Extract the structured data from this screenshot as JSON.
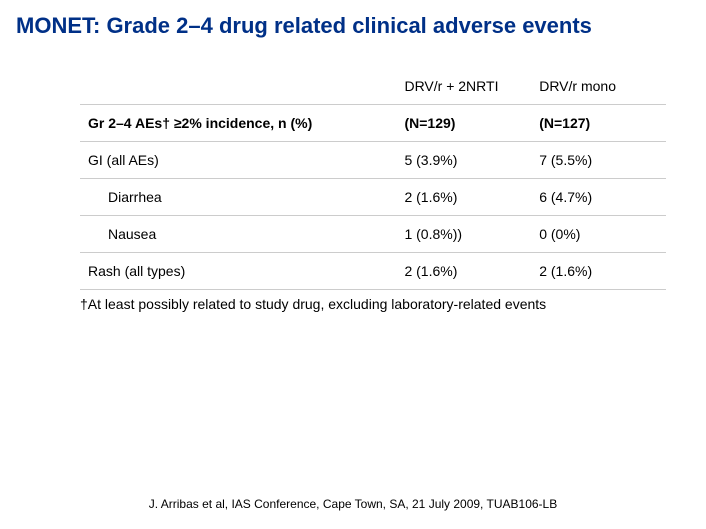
{
  "title": "MONET: Grade 2–4 drug related clinical adverse events",
  "colors": {
    "title": "#003087",
    "text": "#000000",
    "border": "#cccccc",
    "background": "#ffffff"
  },
  "table": {
    "type": "table",
    "header": {
      "blank": "",
      "col1": "DRV/r + 2NRTI",
      "col2": "DRV/r mono"
    },
    "subheader": {
      "label": "Gr 2–4 AEs† ≥2% incidence, n (%)",
      "n1": "(N=129)",
      "n2": "(N=127)"
    },
    "rows": [
      {
        "label": "GI (all AEs)",
        "v1": "5 (3.9%)",
        "v2": "7 (5.5%)",
        "indent": false
      },
      {
        "label": "Diarrhea",
        "v1": "2 (1.6%)",
        "v2": "6 (4.7%)",
        "indent": true
      },
      {
        "label": "Nausea",
        "v1": "1 (0.8%))",
        "v2": "0 (0%)",
        "indent": true
      },
      {
        "label": "Rash (all types)",
        "v1": "2 (1.6%)",
        "v2": "2 (1.6%)",
        "indent": false
      }
    ]
  },
  "footnote": "†At least possibly related to study drug, excluding laboratory-related events",
  "citation": "J. Arribas et al, IAS Conference, Cape Town, SA, 21 July 2009, TUAB106-LB"
}
